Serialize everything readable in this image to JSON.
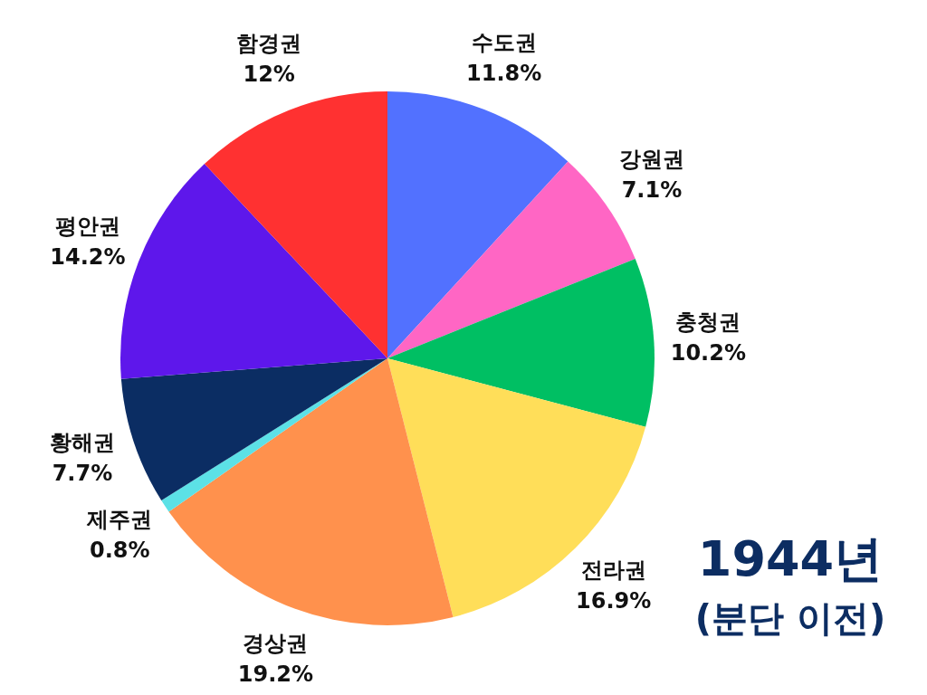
{
  "chart_data": {
    "type": "pie",
    "title": "1944년",
    "subtitle": "(분단 이전)",
    "categories": [
      "수도권",
      "강원권",
      "충청권",
      "전라권",
      "경상권",
      "제주권",
      "황해권",
      "평안권",
      "함경권"
    ],
    "values": [
      11.8,
      7.1,
      10.2,
      16.9,
      19.2,
      0.8,
      7.7,
      14.2,
      12
    ],
    "value_labels": [
      "11.8%",
      "7.1%",
      "10.2%",
      "16.9%",
      "19.2%",
      "0.8%",
      "7.7%",
      "14.2%",
      "12%"
    ],
    "colors": [
      "#5271ff",
      "#ff66c4",
      "#00bf63",
      "#ffde59",
      "#ff914d",
      "#5ce1e6",
      "#0b2d63",
      "#5e17eb",
      "#ff3131"
    ],
    "legend": false
  }
}
